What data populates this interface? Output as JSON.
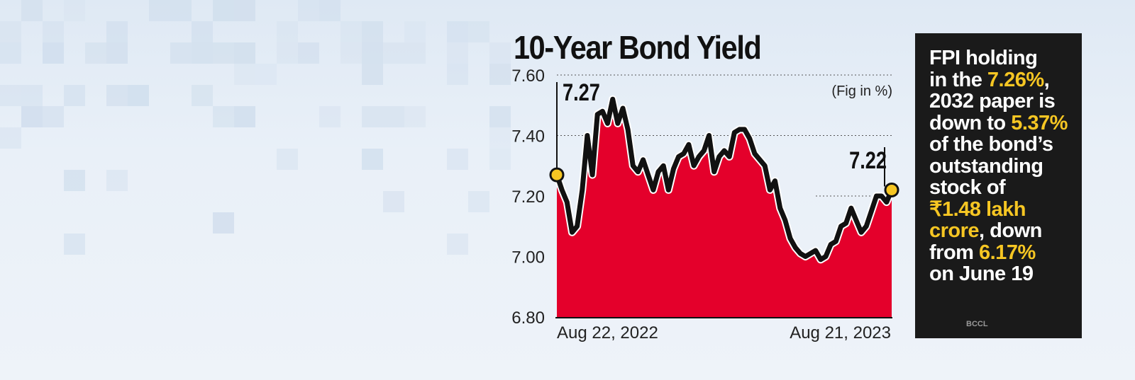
{
  "colors": {
    "fill": "#e4002b",
    "line": "#111111",
    "dot": "#f6c623",
    "highlight": "#f6c623",
    "box": "#1a1a1a"
  },
  "chart_data": {
    "type": "area",
    "title": "10-Year Bond Yield",
    "unit_note": "(Fig in %)",
    "xlabel": "",
    "ylabel": "",
    "ylim": [
      6.8,
      7.6
    ],
    "yticks": [
      "7.60",
      "7.40",
      "7.20",
      "7.00",
      "6.80"
    ],
    "xticks": [
      "Aug 22, 2022",
      "Aug 21, 2023"
    ],
    "start_label": "7.27",
    "end_label": "7.22",
    "values": [
      7.27,
      7.22,
      7.18,
      7.08,
      7.1,
      7.22,
      7.4,
      7.27,
      7.47,
      7.48,
      7.44,
      7.52,
      7.44,
      7.49,
      7.42,
      7.3,
      7.28,
      7.32,
      7.27,
      7.22,
      7.28,
      7.3,
      7.22,
      7.29,
      7.33,
      7.34,
      7.37,
      7.3,
      7.33,
      7.35,
      7.4,
      7.28,
      7.33,
      7.35,
      7.33,
      7.41,
      7.42,
      7.42,
      7.39,
      7.34,
      7.32,
      7.3,
      7.22,
      7.25,
      7.16,
      7.12,
      7.06,
      7.03,
      7.01,
      7.0,
      7.01,
      7.02,
      6.99,
      7.0,
      7.04,
      7.05,
      7.1,
      7.11,
      7.16,
      7.12,
      7.08,
      7.1,
      7.15,
      7.2,
      7.2,
      7.18,
      7.22
    ]
  },
  "sidebar_text": {
    "l1": "FPI holding",
    "l2a": "in the ",
    "l2b": "7.26%",
    "l2c": ",",
    "l3": "2032 paper is",
    "l4a": "down to ",
    "l4b": "5.37%",
    "l5": "of the bond’s",
    "l6": "outstanding",
    "l7": "stock of",
    "l8": "₹1.48 lakh",
    "l9a": "crore",
    "l9b": ", down",
    "l10a": "from ",
    "l10b": "6.17%",
    "l11": "on June 19"
  },
  "watermark": "BCCL"
}
